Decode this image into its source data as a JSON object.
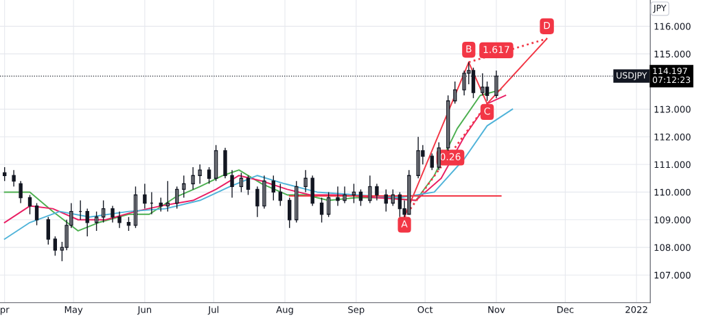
{
  "chart_data": {
    "type": "candlestick",
    "color": "#131722",
    "x": [
      "2021-04-01",
      "2021-04-05",
      "2021-04-08",
      "2021-04-12",
      "2021-04-15",
      "2021-04-20",
      "2021-04-23",
      "2021-04-26",
      "2021-04-28",
      "2021-04-30",
      "2021-05-04",
      "2021-05-07",
      "2021-05-11",
      "2021-05-14",
      "2021-05-18",
      "2021-05-21",
      "2021-05-25",
      "2021-05-28",
      "2021-06-01",
      "2021-06-04",
      "2021-06-08",
      "2021-06-11",
      "2021-06-15",
      "2021-06-18",
      "2021-06-22",
      "2021-06-25",
      "2021-06-29",
      "2021-07-02",
      "2021-07-06",
      "2021-07-09",
      "2021-07-13",
      "2021-07-16",
      "2021-07-20",
      "2021-07-23",
      "2021-07-27",
      "2021-07-30",
      "2021-08-03",
      "2021-08-06",
      "2021-08-10",
      "2021-08-13",
      "2021-08-17",
      "2021-08-20",
      "2021-08-24",
      "2021-08-27",
      "2021-08-31",
      "2021-09-03",
      "2021-09-07",
      "2021-09-10",
      "2021-09-14",
      "2021-09-17",
      "2021-09-20",
      "2021-09-22",
      "2021-09-24",
      "2021-09-28",
      "2021-09-30",
      "2021-10-04",
      "2021-10-07",
      "2021-10-11",
      "2021-10-14",
      "2021-10-18",
      "2021-10-20",
      "2021-10-22",
      "2021-10-26",
      "2021-10-28",
      "2021-11-01"
    ],
    "ohlc": [
      [
        110.7,
        110.9,
        110.4,
        110.6
      ],
      [
        110.6,
        110.8,
        110.2,
        110.4
      ],
      [
        110.3,
        110.4,
        109.6,
        109.8
      ],
      [
        109.8,
        109.9,
        109.2,
        109.5
      ],
      [
        109.5,
        109.6,
        108.8,
        109.0
      ],
      [
        109.0,
        109.1,
        108.1,
        108.3
      ],
      [
        108.3,
        108.4,
        107.7,
        107.9
      ],
      [
        107.9,
        108.2,
        107.5,
        108.0
      ],
      [
        108.0,
        109.0,
        107.9,
        108.8
      ],
      [
        108.8,
        109.6,
        108.7,
        109.3
      ],
      [
        109.3,
        109.7,
        109.0,
        109.3
      ],
      [
        109.3,
        109.4,
        108.4,
        108.9
      ],
      [
        108.9,
        109.3,
        108.6,
        109.1
      ],
      [
        109.1,
        109.7,
        108.9,
        109.4
      ],
      [
        109.4,
        109.5,
        108.9,
        109.1
      ],
      [
        109.1,
        109.3,
        108.7,
        108.9
      ],
      [
        108.9,
        109.1,
        108.6,
        108.8
      ],
      [
        108.8,
        110.2,
        108.7,
        109.9
      ],
      [
        109.9,
        110.3,
        109.4,
        109.6
      ],
      [
        109.6,
        110.0,
        109.2,
        109.6
      ],
      [
        109.6,
        109.8,
        109.3,
        109.5
      ],
      [
        109.5,
        110.4,
        109.3,
        109.6
      ],
      [
        109.6,
        110.2,
        109.4,
        110.1
      ],
      [
        110.1,
        110.6,
        109.8,
        110.3
      ],
      [
        110.3,
        110.9,
        110.1,
        110.6
      ],
      [
        110.6,
        111.0,
        110.3,
        110.8
      ],
      [
        110.8,
        110.9,
        110.3,
        110.5
      ],
      [
        110.5,
        111.7,
        110.4,
        111.5
      ],
      [
        111.5,
        111.6,
        110.5,
        110.6
      ],
      [
        110.6,
        110.8,
        109.8,
        110.2
      ],
      [
        110.2,
        110.7,
        110.0,
        110.5
      ],
      [
        110.5,
        110.6,
        109.9,
        110.1
      ],
      [
        110.1,
        110.2,
        109.1,
        109.5
      ],
      [
        109.5,
        110.6,
        109.4,
        110.4
      ],
      [
        110.4,
        110.6,
        109.7,
        110.0
      ],
      [
        110.0,
        110.3,
        109.5,
        109.7
      ],
      [
        109.7,
        109.8,
        108.7,
        109.0
      ],
      [
        109.0,
        110.4,
        108.9,
        110.2
      ],
      [
        110.2,
        110.8,
        110.0,
        110.5
      ],
      [
        110.5,
        110.6,
        109.5,
        109.6
      ],
      [
        109.6,
        109.8,
        108.9,
        109.2
      ],
      [
        109.2,
        110.0,
        109.1,
        109.8
      ],
      [
        109.8,
        110.2,
        109.5,
        109.7
      ],
      [
        109.7,
        110.2,
        109.6,
        109.9
      ],
      [
        109.9,
        110.3,
        109.6,
        110.0
      ],
      [
        110.0,
        110.1,
        109.5,
        109.7
      ],
      [
        109.7,
        110.6,
        109.6,
        110.2
      ],
      [
        110.2,
        110.3,
        109.7,
        109.9
      ],
      [
        109.9,
        110.1,
        109.3,
        109.6
      ],
      [
        109.6,
        110.1,
        109.5,
        109.9
      ],
      [
        109.9,
        110.0,
        109.1,
        109.4
      ],
      [
        109.4,
        109.7,
        109.1,
        109.2
      ],
      [
        109.2,
        110.8,
        109.2,
        110.6
      ],
      [
        110.6,
        112.0,
        110.5,
        111.5
      ],
      [
        111.5,
        111.7,
        111.0,
        111.3
      ],
      [
        111.3,
        111.4,
        110.8,
        110.9
      ],
      [
        110.9,
        111.8,
        110.8,
        111.6
      ],
      [
        111.6,
        113.5,
        111.5,
        113.3
      ],
      [
        113.3,
        114.0,
        113.2,
        113.7
      ],
      [
        113.7,
        114.4,
        113.5,
        114.3
      ],
      [
        114.3,
        114.7,
        113.9,
        114.4
      ],
      [
        114.4,
        114.5,
        113.4,
        113.6
      ],
      [
        113.6,
        114.3,
        113.5,
        113.8
      ],
      [
        113.8,
        114.0,
        113.3,
        113.5
      ],
      [
        113.5,
        114.4,
        113.4,
        114.197
      ]
    ],
    "series": [
      {
        "type": "line",
        "color": "#4caf50",
        "x": [
          "2021-04-01",
          "2021-04-12",
          "2021-04-22",
          "2021-05-03",
          "2021-05-12",
          "2021-05-25",
          "2021-06-03",
          "2021-06-14",
          "2021-06-25",
          "2021-07-05",
          "2021-07-12",
          "2021-07-22",
          "2021-08-02",
          "2021-08-10",
          "2021-08-20",
          "2021-09-01",
          "2021-09-15",
          "2021-09-27",
          "2021-10-05",
          "2021-10-15",
          "2021-10-25",
          "2021-11-03"
        ],
        "values": [
          110.0,
          110.0,
          109.3,
          108.6,
          108.9,
          109.2,
          109.2,
          109.8,
          110.2,
          110.6,
          110.8,
          110.3,
          109.9,
          109.9,
          109.7,
          109.8,
          109.8,
          109.7,
          110.6,
          112.3,
          113.5,
          113.7
        ]
      },
      {
        "type": "line",
        "color": "#e91e63",
        "x": [
          "2021-04-01",
          "2021-04-12",
          "2021-04-22",
          "2021-05-03",
          "2021-05-15",
          "2021-05-28",
          "2021-06-08",
          "2021-06-22",
          "2021-07-02",
          "2021-07-12",
          "2021-07-22",
          "2021-08-02",
          "2021-08-12",
          "2021-08-25",
          "2021-09-10",
          "2021-09-27",
          "2021-10-08",
          "2021-10-18",
          "2021-10-28",
          "2021-11-05"
        ],
        "values": [
          108.9,
          109.5,
          109.4,
          109.0,
          109.0,
          109.3,
          109.5,
          109.7,
          110.1,
          110.6,
          110.4,
          110.1,
          109.9,
          109.9,
          109.8,
          109.7,
          110.5,
          112.0,
          113.2,
          113.5
        ]
      },
      {
        "type": "line",
        "color": "#4fb3d9",
        "x": [
          "2021-04-01",
          "2021-04-12",
          "2021-04-25",
          "2021-05-08",
          "2021-05-25",
          "2021-06-10",
          "2021-06-25",
          "2021-07-08",
          "2021-07-20",
          "2021-08-01",
          "2021-08-15",
          "2021-09-01",
          "2021-09-20",
          "2021-10-05",
          "2021-10-18",
          "2021-10-28",
          "2021-11-08"
        ],
        "values": [
          108.3,
          108.9,
          109.3,
          109.1,
          109.3,
          109.4,
          109.7,
          110.2,
          110.6,
          110.3,
          110.0,
          109.9,
          109.8,
          110.0,
          111.2,
          112.4,
          113.0
        ]
      },
      {
        "type": "line",
        "color": "#f23645",
        "x": [
          "2021-08-03",
          "2021-11-03"
        ],
        "values": [
          109.86,
          109.86
        ]
      },
      {
        "type": "line",
        "color": "#f23645",
        "x": [
          "2021-09-22",
          "2021-10-20",
          "2021-10-28",
          "2021-11-23"
        ],
        "values": [
          109.1,
          114.7,
          113.2,
          115.55
        ]
      },
      {
        "type": "line",
        "color": "#f23645",
        "line_style": "dotted",
        "x": [
          "2021-09-22",
          "2021-10-28"
        ],
        "values": [
          109.1,
          113.2
        ]
      },
      {
        "type": "line",
        "color": "#f23645",
        "line_style": "dotted",
        "x": [
          "2021-10-20",
          "2021-11-23"
        ],
        "values": [
          114.7,
          115.55
        ]
      }
    ],
    "annotations": [
      {
        "text": "A",
        "x": "2021-09-22",
        "y": 108.82
      },
      {
        "text": "B",
        "x": "2021-10-20",
        "y": 115.15
      },
      {
        "text": "C",
        "x": "2021-10-28",
        "y": 112.9
      },
      {
        "text": "D",
        "x": "2021-11-23",
        "y": 116.0
      },
      {
        "text": "1.617",
        "x": "2021-11-01",
        "y": 115.13
      },
      {
        "text": "0.26",
        "x": "2021-10-12",
        "y": 111.25
      },
      "114.197\n07:12:23",
      "JPY"
    ],
    "ref_lines": [
      {
        "axis": "y",
        "value": 114.197,
        "label": "USDJPY",
        "color": "#131722",
        "line_style": "dotted"
      }
    ],
    "xlim": [
      "2021-03-30",
      "2022-01-07"
    ],
    "xticks": [
      {
        "value": "2021-04-01",
        "label": "pr"
      },
      {
        "value": "2021-05-01",
        "label": "May"
      },
      {
        "value": "2021-06-01",
        "label": "Jun"
      },
      {
        "value": "2021-07-01",
        "label": "Jul"
      },
      {
        "value": "2021-08-01",
        "label": "Aug"
      },
      {
        "value": "2021-09-01",
        "label": "Sep"
      },
      {
        "value": "2021-10-01",
        "label": "Oct"
      },
      {
        "value": "2021-11-01",
        "label": "Nov"
      },
      {
        "value": "2021-12-01",
        "label": "Dec"
      },
      {
        "value": "2022-01-01",
        "label": "2022"
      }
    ],
    "ylim": [
      106.0,
      116.95
    ],
    "yticks": [
      {
        "value": 107,
        "label": "107.000"
      },
      {
        "value": 108,
        "label": "108.000"
      },
      {
        "value": 109,
        "label": "109.000"
      },
      {
        "value": 110,
        "label": "110.000"
      },
      {
        "value": 111,
        "label": "111.000"
      },
      {
        "value": 112,
        "label": "112.000"
      },
      {
        "value": 113,
        "label": "113.000"
      },
      {
        "value": 115,
        "label": "115.000"
      },
      {
        "value": 116,
        "label": "116.000"
      }
    ],
    "grid": true
  }
}
